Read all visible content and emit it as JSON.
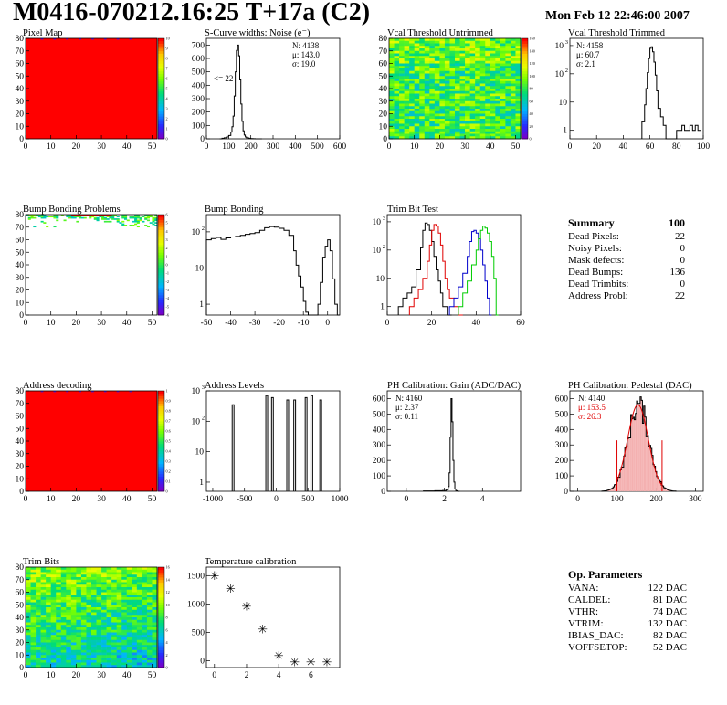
{
  "header": {
    "title": "M0416-070212.16:25 T+17a (C2)",
    "date": "Mon Feb 12 22:46:00 2007"
  },
  "panels": {
    "pixel_map": {
      "title": "Pixel Map"
    },
    "scurve": {
      "title": "S-Curve widths: Noise (e⁻)",
      "stats": [
        "N: 4138",
        "μ: 143.0",
        "σ: 19.0"
      ],
      "annotation": "<= 22"
    },
    "vcal_untrimmed": {
      "title": "Vcal Threshold Untrimmed"
    },
    "vcal_trimmed": {
      "title": "Vcal Threshold Trimmed",
      "stats": [
        "N: 4158",
        "μ: 60.7",
        "σ: 2.1"
      ]
    },
    "bump_problems": {
      "title": "Bump Bonding Problems"
    },
    "bump_bonding": {
      "title": "Bump Bonding"
    },
    "trim_bit_test": {
      "title": "Trim Bit Test"
    },
    "address_decoding": {
      "title": "Address decoding"
    },
    "address_levels": {
      "title": "Address Levels"
    },
    "ph_gain": {
      "title": "PH Calibration: Gain (ADC/DAC)",
      "stats": [
        "N: 4160",
        "μ: 2.37",
        "σ: 0.11"
      ]
    },
    "ph_pedestal": {
      "title": "PH Calibration: Pedestal (DAC)",
      "stats": [
        "N: 4140",
        "μ: 153.5",
        "σ: 26.3"
      ]
    },
    "trim_bits": {
      "title": "Trim Bits"
    },
    "temperature": {
      "title": "Temperature calibration"
    }
  },
  "summary": {
    "heading": "Summary",
    "total": "100",
    "rows": [
      {
        "label": "Dead Pixels:",
        "value": "22"
      },
      {
        "label": "Noisy Pixels:",
        "value": "0"
      },
      {
        "label": "Mask defects:",
        "value": "0"
      },
      {
        "label": "Dead Bumps:",
        "value": "136"
      },
      {
        "label": "Dead Trimbits:",
        "value": "0"
      },
      {
        "label": "Address Probl:",
        "value": "22"
      }
    ]
  },
  "op_params": {
    "heading": "Op. Parameters",
    "rows": [
      {
        "label": "VANA:",
        "value": "122 DAC"
      },
      {
        "label": "CALDEL:",
        "value": "81 DAC"
      },
      {
        "label": "VTHR:",
        "value": "74 DAC"
      },
      {
        "label": "VTRIM:",
        "value": "132 DAC"
      },
      {
        "label": "IBIAS_DAC:",
        "value": "82 DAC"
      },
      {
        "label": "VOFFSETOP:",
        "value": "52 DAC"
      }
    ]
  },
  "colors": {
    "map_red": "#ff0000",
    "hist_red": "#e00000",
    "hist_blue": "#0000cc",
    "hist_green": "#00cc00"
  },
  "chart_data": [
    {
      "id": "pixel_map",
      "type": "heatmap",
      "title": "Pixel Map",
      "xlim": [
        0,
        52
      ],
      "ylim": [
        0,
        80
      ],
      "xticks": [
        0,
        10,
        20,
        30,
        40,
        50
      ],
      "yticks": [
        0,
        10,
        20,
        30,
        40,
        50,
        60,
        70,
        80
      ],
      "zlim": [
        0,
        10
      ],
      "zticks": [
        0,
        1,
        2,
        3,
        4,
        5,
        6,
        7,
        8,
        9,
        10
      ],
      "fill": "uniform",
      "value": 10
    },
    {
      "id": "scurve",
      "type": "histogram",
      "title": "S-Curve widths: Noise (e⁻)",
      "xlim": [
        0,
        600
      ],
      "ylim": [
        0,
        750
      ],
      "xticks": [
        0,
        100,
        200,
        300,
        400,
        500,
        600
      ],
      "yticks": [
        0,
        100,
        200,
        300,
        400,
        500,
        600,
        700
      ],
      "series": [
        {
          "x": [
            60,
            70,
            80,
            90,
            100,
            110,
            115,
            120,
            125,
            130,
            135,
            140,
            145,
            150,
            155,
            160,
            165,
            170,
            175,
            180,
            190,
            200,
            210,
            220,
            230,
            240
          ],
          "y": [
            0,
            4,
            8,
            14,
            25,
            50,
            90,
            170,
            320,
            500,
            660,
            700,
            620,
            440,
            260,
            130,
            60,
            28,
            14,
            8,
            4,
            2,
            1,
            0,
            0,
            0
          ]
        }
      ]
    },
    {
      "id": "vcal_untrimmed",
      "type": "heatmap",
      "title": "Vcal Threshold Untrimmed",
      "xlim": [
        0,
        52
      ],
      "ylim": [
        0,
        80
      ],
      "xticks": [
        0,
        10,
        20,
        30,
        40,
        50
      ],
      "yticks": [
        0,
        10,
        20,
        30,
        40,
        50,
        60,
        70,
        80
      ],
      "zlim": [
        0,
        160
      ],
      "zticks": [
        0,
        20,
        40,
        60,
        80,
        100,
        120,
        140,
        160
      ],
      "fill": "noise",
      "mean": 95,
      "spread": 22
    },
    {
      "id": "vcal_trimmed",
      "type": "histogram",
      "title": "Vcal Threshold Trimmed",
      "log": true,
      "xlim": [
        0,
        100
      ],
      "ylim": [
        0.5,
        1800
      ],
      "xticks": [
        0,
        20,
        40,
        60,
        80,
        100
      ],
      "yticks": [
        1,
        10,
        100,
        1000
      ],
      "series": [
        {
          "x": [
            54,
            56,
            57,
            58,
            59,
            60,
            61,
            62,
            63,
            64,
            65,
            66,
            68,
            70,
            72,
            74,
            76,
            78,
            80,
            82,
            84,
            86,
            88,
            90,
            92,
            94,
            96
          ],
          "y": [
            2,
            8,
            30,
            110,
            350,
            800,
            900,
            600,
            260,
            90,
            25,
            6,
            3,
            1.5,
            0,
            0,
            0,
            0,
            1,
            1,
            1.5,
            1,
            1,
            1.5,
            1,
            1.5,
            1
          ]
        }
      ]
    },
    {
      "id": "bump_problems",
      "type": "heatmap",
      "title": "Bump Bonding Problems",
      "xlim": [
        0,
        52
      ],
      "ylim": [
        0,
        80
      ],
      "xticks": [
        0,
        10,
        20,
        30,
        40,
        50
      ],
      "yticks": [
        0,
        10,
        20,
        30,
        40,
        50,
        60,
        70,
        80
      ],
      "zlim": [
        -6,
        6
      ],
      "zticks": [
        -6,
        -5,
        -4,
        -3,
        -2,
        -1,
        0,
        1,
        2,
        3,
        4,
        5,
        6
      ],
      "fill": "top-band"
    },
    {
      "id": "bump_bonding",
      "type": "histogram",
      "title": "Bump Bonding",
      "log": true,
      "xlim": [
        -50,
        5
      ],
      "ylim": [
        0.5,
        300
      ],
      "xticks": [
        -50,
        -40,
        -30,
        -20,
        -10,
        0
      ],
      "yticks": [
        1,
        10,
        100
      ],
      "series": [
        {
          "x": [
            -50,
            -48,
            -46,
            -44,
            -42,
            -40,
            -38,
            -36,
            -34,
            -32,
            -30,
            -28,
            -26,
            -24,
            -22,
            -20,
            -18,
            -16,
            -14,
            -13,
            -12,
            -11,
            -10,
            -9,
            -8,
            -6,
            -4,
            -3,
            -2,
            -1,
            0,
            1,
            2,
            3,
            4
          ],
          "y": [
            60,
            65,
            70,
            62,
            68,
            72,
            75,
            80,
            85,
            90,
            95,
            110,
            130,
            140,
            135,
            125,
            110,
            80,
            30,
            12,
            6,
            3,
            1.2,
            0.6,
            0,
            0,
            1,
            4,
            20,
            40,
            60,
            30,
            5,
            1,
            0
          ]
        }
      ]
    },
    {
      "id": "trim_bit_test",
      "type": "histogram",
      "title": "Trim Bit Test",
      "log": true,
      "xlim": [
        0,
        60
      ],
      "ylim": [
        0.5,
        1800
      ],
      "xticks": [
        0,
        20,
        40,
        60
      ],
      "yticks": [
        1,
        10,
        100,
        1000
      ],
      "series": [
        {
          "name": "",
          "color": "#000000",
          "x": [
            5,
            7,
            9,
            11,
            13,
            15,
            16,
            17,
            18,
            19,
            20,
            21,
            22,
            23,
            24,
            25,
            26,
            27,
            28
          ],
          "y": [
            1,
            2,
            3,
            5,
            20,
            120,
            500,
            900,
            800,
            500,
            200,
            60,
            20,
            8,
            3,
            1,
            1,
            0,
            0
          ]
        },
        {
          "name": "",
          "color": "#e00000",
          "x": [
            10,
            12,
            14,
            16,
            18,
            19,
            20,
            21,
            22,
            23,
            24,
            25,
            26,
            27,
            28,
            30,
            32
          ],
          "y": [
            1,
            2,
            4,
            10,
            40,
            150,
            500,
            800,
            700,
            400,
            150,
            40,
            10,
            4,
            2,
            1,
            0
          ]
        },
        {
          "name": "",
          "color": "#0000cc",
          "x": [
            28,
            30,
            32,
            34,
            36,
            37,
            38,
            39,
            40,
            41,
            42,
            43,
            44,
            45,
            46
          ],
          "y": [
            1,
            2,
            5,
            15,
            60,
            200,
            450,
            500,
            400,
            250,
            100,
            30,
            8,
            2,
            0
          ]
        },
        {
          "name": "",
          "color": "#00cc00",
          "x": [
            32,
            34,
            36,
            38,
            40,
            41,
            42,
            43,
            44,
            45,
            46,
            47,
            48,
            49
          ],
          "y": [
            1,
            3,
            8,
            30,
            100,
            250,
            500,
            700,
            600,
            400,
            200,
            60,
            10,
            0
          ]
        }
      ]
    },
    {
      "id": "address_decoding",
      "type": "heatmap",
      "title": "Address decoding",
      "xlim": [
        0,
        52
      ],
      "ylim": [
        0,
        80
      ],
      "xticks": [
        0,
        10,
        20,
        30,
        40,
        50
      ],
      "yticks": [
        0,
        10,
        20,
        30,
        40,
        50,
        60,
        70,
        80
      ],
      "zlim": [
        0,
        1
      ],
      "zticks": [
        0,
        0.1,
        0.2,
        0.3,
        0.4,
        0.5,
        0.6,
        0.7,
        0.8,
        0.9,
        1
      ],
      "fill": "uniform",
      "value": 1
    },
    {
      "id": "address_levels",
      "type": "histogram",
      "title": "Address Levels",
      "log": true,
      "xlim": [
        -1100,
        1000
      ],
      "ylim": [
        0.5,
        1000
      ],
      "xticks": [
        -1000,
        -500,
        0,
        500,
        1000
      ],
      "yticks": [
        1,
        10,
        100,
        1000
      ],
      "series": [
        {
          "peaks": [
            -680,
            -150,
            -60,
            180,
            290,
            470,
            560,
            700
          ],
          "heights": [
            350,
            700,
            600,
            500,
            500,
            600,
            700,
            500
          ]
        }
      ]
    },
    {
      "id": "ph_gain",
      "type": "histogram",
      "title": "PH Calibration: Gain (ADC/DAC)",
      "xlim": [
        -1,
        6
      ],
      "ylim": [
        0,
        650
      ],
      "xticks": [
        0,
        2,
        4
      ],
      "yticks": [
        0,
        100,
        200,
        300,
        400,
        500,
        600
      ],
      "series": [
        {
          "x": [
            0.9,
            1.5,
            1.9,
            2.1,
            2.2,
            2.25,
            2.3,
            2.35,
            2.4,
            2.45,
            2.5,
            2.55,
            2.6,
            2.7
          ],
          "y": [
            2,
            4,
            5,
            10,
            30,
            120,
            350,
            600,
            450,
            200,
            60,
            15,
            4,
            0
          ]
        }
      ]
    },
    {
      "id": "ph_pedestal",
      "type": "histogram",
      "title": "PH Calibration: Pedestal (DAC)",
      "xlim": [
        -20,
        320
      ],
      "ylim": [
        0,
        650
      ],
      "xticks": [
        0,
        100,
        200,
        300
      ],
      "yticks": [
        0,
        100,
        200,
        300,
        400,
        500,
        600
      ],
      "series": [
        {
          "gaussian": {
            "mean": 153.5,
            "sigma": 26.3,
            "peak": 560
          }
        }
      ],
      "fit_range": [
        100,
        215
      ]
    },
    {
      "id": "trim_bits",
      "type": "heatmap",
      "title": "Trim Bits",
      "xlim": [
        0,
        52
      ],
      "ylim": [
        0,
        80
      ],
      "xticks": [
        0,
        10,
        20,
        30,
        40,
        50
      ],
      "yticks": [
        0,
        10,
        20,
        30,
        40,
        50,
        60,
        70,
        80
      ],
      "zlim": [
        0,
        16
      ],
      "zticks": [
        0,
        2,
        4,
        6,
        8,
        10,
        12,
        14,
        16
      ],
      "fill": "noise-gradient"
    },
    {
      "id": "temperature",
      "type": "scatter",
      "title": "Temperature calibration",
      "xlim": [
        -0.5,
        7.8
      ],
      "ylim": [
        -120,
        1650
      ],
      "xticks": [
        0,
        2,
        4,
        6
      ],
      "yticks": [
        0,
        500,
        1000,
        1500
      ],
      "series": [
        {
          "x": [
            0,
            1,
            2,
            3,
            4,
            5,
            6,
            7
          ],
          "y": [
            1520,
            1300,
            980,
            580,
            110,
            0,
            0,
            0
          ]
        }
      ]
    }
  ]
}
